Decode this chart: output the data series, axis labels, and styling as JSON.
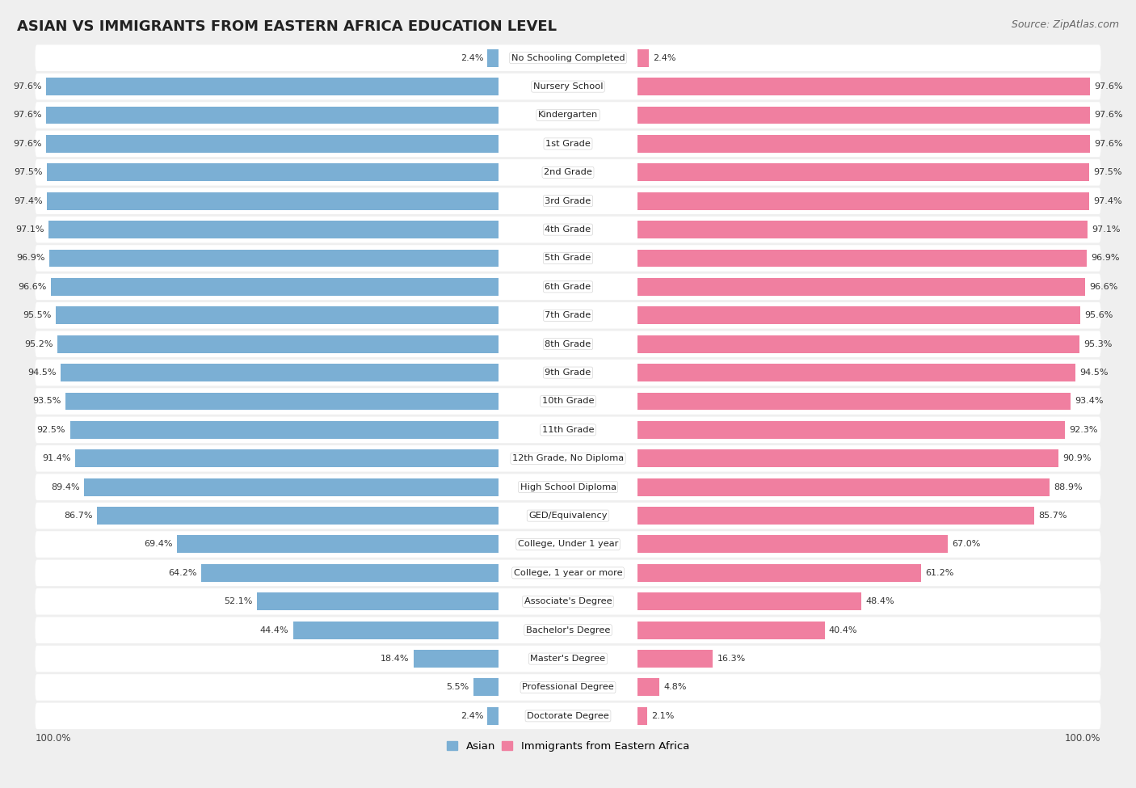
{
  "title": "ASIAN VS IMMIGRANTS FROM EASTERN AFRICA EDUCATION LEVEL",
  "source": "Source: ZipAtlas.com",
  "categories": [
    "No Schooling Completed",
    "Nursery School",
    "Kindergarten",
    "1st Grade",
    "2nd Grade",
    "3rd Grade",
    "4th Grade",
    "5th Grade",
    "6th Grade",
    "7th Grade",
    "8th Grade",
    "9th Grade",
    "10th Grade",
    "11th Grade",
    "12th Grade, No Diploma",
    "High School Diploma",
    "GED/Equivalency",
    "College, Under 1 year",
    "College, 1 year or more",
    "Associate's Degree",
    "Bachelor's Degree",
    "Master's Degree",
    "Professional Degree",
    "Doctorate Degree"
  ],
  "asian": [
    2.4,
    97.6,
    97.6,
    97.6,
    97.5,
    97.4,
    97.1,
    96.9,
    96.6,
    95.5,
    95.2,
    94.5,
    93.5,
    92.5,
    91.4,
    89.4,
    86.7,
    69.4,
    64.2,
    52.1,
    44.4,
    18.4,
    5.5,
    2.4
  ],
  "eastern_africa": [
    2.4,
    97.6,
    97.6,
    97.6,
    97.5,
    97.4,
    97.1,
    96.9,
    96.6,
    95.6,
    95.3,
    94.5,
    93.4,
    92.3,
    90.9,
    88.9,
    85.7,
    67.0,
    61.2,
    48.4,
    40.4,
    16.3,
    4.8,
    2.1
  ],
  "asian_color": "#7bafd4",
  "eastern_africa_color": "#f07fa0",
  "background_color": "#efefef",
  "bar_bg_color": "#ffffff",
  "legend_asian": "Asian",
  "legend_ea": "Immigrants from Eastern Africa",
  "title_fontsize": 13,
  "source_fontsize": 9,
  "label_fontsize": 8.5,
  "value_fontsize": 8.5
}
